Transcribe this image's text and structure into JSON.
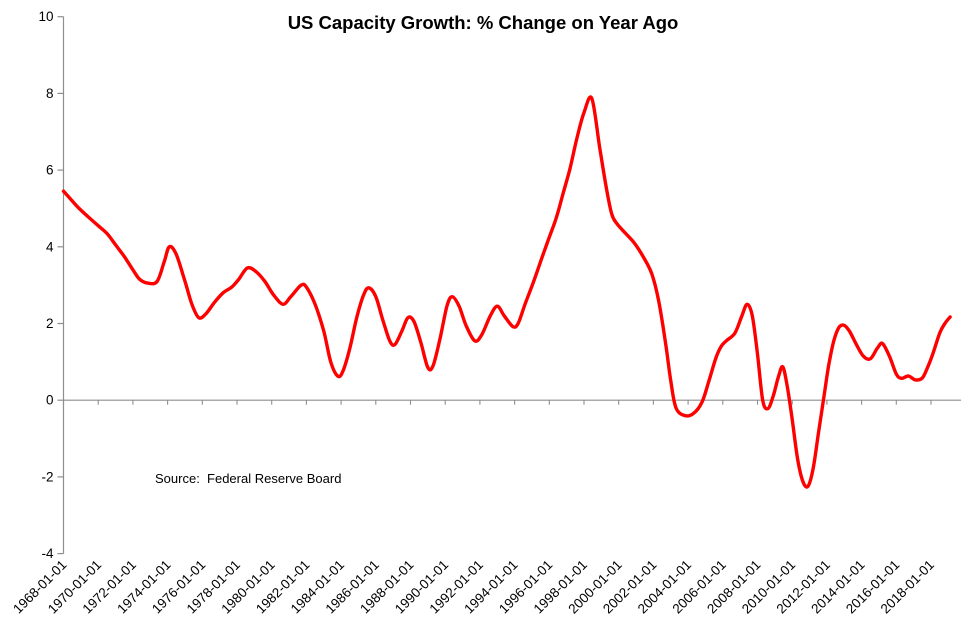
{
  "chart_data": {
    "type": "line",
    "title": "US Capacity Growth: % Change on Year Ago",
    "source_note": "Source:  Federal Reserve Board",
    "xlabel": "",
    "ylabel": "",
    "ylim": [
      -4,
      10
    ],
    "xlim": [
      1968,
      2019.6
    ],
    "grid": false,
    "legend_position": "none",
    "x_axis_crosses_at": 0,
    "y_ticks": [
      10,
      8,
      6,
      4,
      2,
      0,
      -2,
      -4
    ],
    "x_tick_labels": [
      "1968-01-01",
      "1970-01-01",
      "1972-01-01",
      "1974-01-01",
      "1976-01-01",
      "1978-01-01",
      "1980-01-01",
      "1982-01-01",
      "1984-01-01",
      "1986-01-01",
      "1988-01-01",
      "1990-01-01",
      "1992-01-01",
      "1994-01-01",
      "1996-01-01",
      "1998-01-01",
      "2000-01-01",
      "2002-01-01",
      "2004-01-01",
      "2006-01-01",
      "2008-01-01",
      "2010-01-01",
      "2012-01-01",
      "2014-01-01",
      "2016-01-01",
      "2018-01-01"
    ],
    "colors": {
      "series": "#FF0000",
      "axis": "#8E8E8E",
      "text": "#000000"
    },
    "series": [
      {
        "name": "US Capacity Growth (% change on year ago)",
        "x": [
          1968.0,
          1968.4,
          1968.9,
          1969.5,
          1970.0,
          1970.5,
          1971.0,
          1971.5,
          1972.0,
          1972.4,
          1972.9,
          1973.4,
          1973.8,
          1974.1,
          1974.5,
          1975.0,
          1975.4,
          1975.8,
          1976.2,
          1976.7,
          1977.2,
          1977.7,
          1978.1,
          1978.6,
          1979.1,
          1979.6,
          1980.1,
          1980.65,
          1981.1,
          1981.7,
          1982.0,
          1982.5,
          1983.0,
          1983.4,
          1983.8,
          1984.1,
          1984.5,
          1984.9,
          1985.3,
          1985.6,
          1986.0,
          1986.4,
          1986.8,
          1987.1,
          1987.5,
          1987.85,
          1988.2,
          1988.6,
          1989.0,
          1989.3,
          1989.7,
          1990.1,
          1990.4,
          1990.8,
          1991.2,
          1991.7,
          1992.1,
          1992.6,
          1993.0,
          1993.4,
          1993.9,
          1994.2,
          1994.6,
          1995.1,
          1995.6,
          1996.0,
          1996.4,
          1996.8,
          1997.2,
          1997.6,
          1998.0,
          1998.45,
          1998.9,
          1999.3,
          1999.6,
          1999.9,
          2000.4,
          2000.9,
          2001.4,
          2001.9,
          2002.3,
          2002.7,
          2003.0,
          2003.3,
          2003.8,
          2004.3,
          2004.8,
          2005.2,
          2005.6,
          2005.9,
          2006.2,
          2006.7,
          2007.1,
          2007.4,
          2007.7,
          2008.0,
          2008.3,
          2008.6,
          2008.9,
          2009.2,
          2009.45,
          2009.7,
          2010.0,
          2010.3,
          2010.6,
          2010.9,
          2011.2,
          2011.5,
          2011.8,
          2012.1,
          2012.4,
          2012.7,
          2013.0,
          2013.3,
          2013.7,
          2014.1,
          2014.5,
          2014.9,
          2015.2,
          2015.6,
          2016.0,
          2016.3,
          2016.7,
          2017.1,
          2017.5,
          2017.8,
          2018.1,
          2018.5,
          2018.8,
          2019.1
        ],
        "values": [
          5.45,
          5.25,
          5.0,
          4.75,
          4.55,
          4.35,
          4.05,
          3.75,
          3.4,
          3.15,
          3.05,
          3.1,
          3.6,
          4.0,
          3.8,
          3.1,
          2.5,
          2.15,
          2.25,
          2.55,
          2.8,
          2.95,
          3.15,
          3.45,
          3.35,
          3.1,
          2.75,
          2.5,
          2.7,
          3.0,
          2.95,
          2.5,
          1.8,
          1.0,
          0.63,
          0.75,
          1.35,
          2.15,
          2.75,
          2.93,
          2.7,
          2.1,
          1.55,
          1.45,
          1.8,
          2.15,
          2.05,
          1.5,
          0.85,
          0.9,
          1.6,
          2.45,
          2.7,
          2.45,
          1.95,
          1.55,
          1.7,
          2.2,
          2.45,
          2.2,
          1.92,
          2.0,
          2.5,
          3.1,
          3.75,
          4.25,
          4.75,
          5.4,
          6.05,
          6.85,
          7.5,
          7.87,
          6.6,
          5.5,
          4.85,
          4.6,
          4.35,
          4.1,
          3.75,
          3.3,
          2.6,
          1.5,
          0.5,
          -0.2,
          -0.4,
          -0.35,
          -0.05,
          0.5,
          1.1,
          1.4,
          1.55,
          1.75,
          2.2,
          2.5,
          2.2,
          1.2,
          0.0,
          -0.22,
          0.1,
          0.6,
          0.87,
          0.4,
          -0.5,
          -1.5,
          -2.1,
          -2.25,
          -1.8,
          -0.9,
          0.0,
          0.9,
          1.55,
          1.9,
          1.95,
          1.8,
          1.45,
          1.15,
          1.08,
          1.35,
          1.48,
          1.15,
          0.68,
          0.57,
          0.63,
          0.53,
          0.58,
          0.85,
          1.2,
          1.75,
          2.0,
          2.17
        ]
      }
    ]
  }
}
